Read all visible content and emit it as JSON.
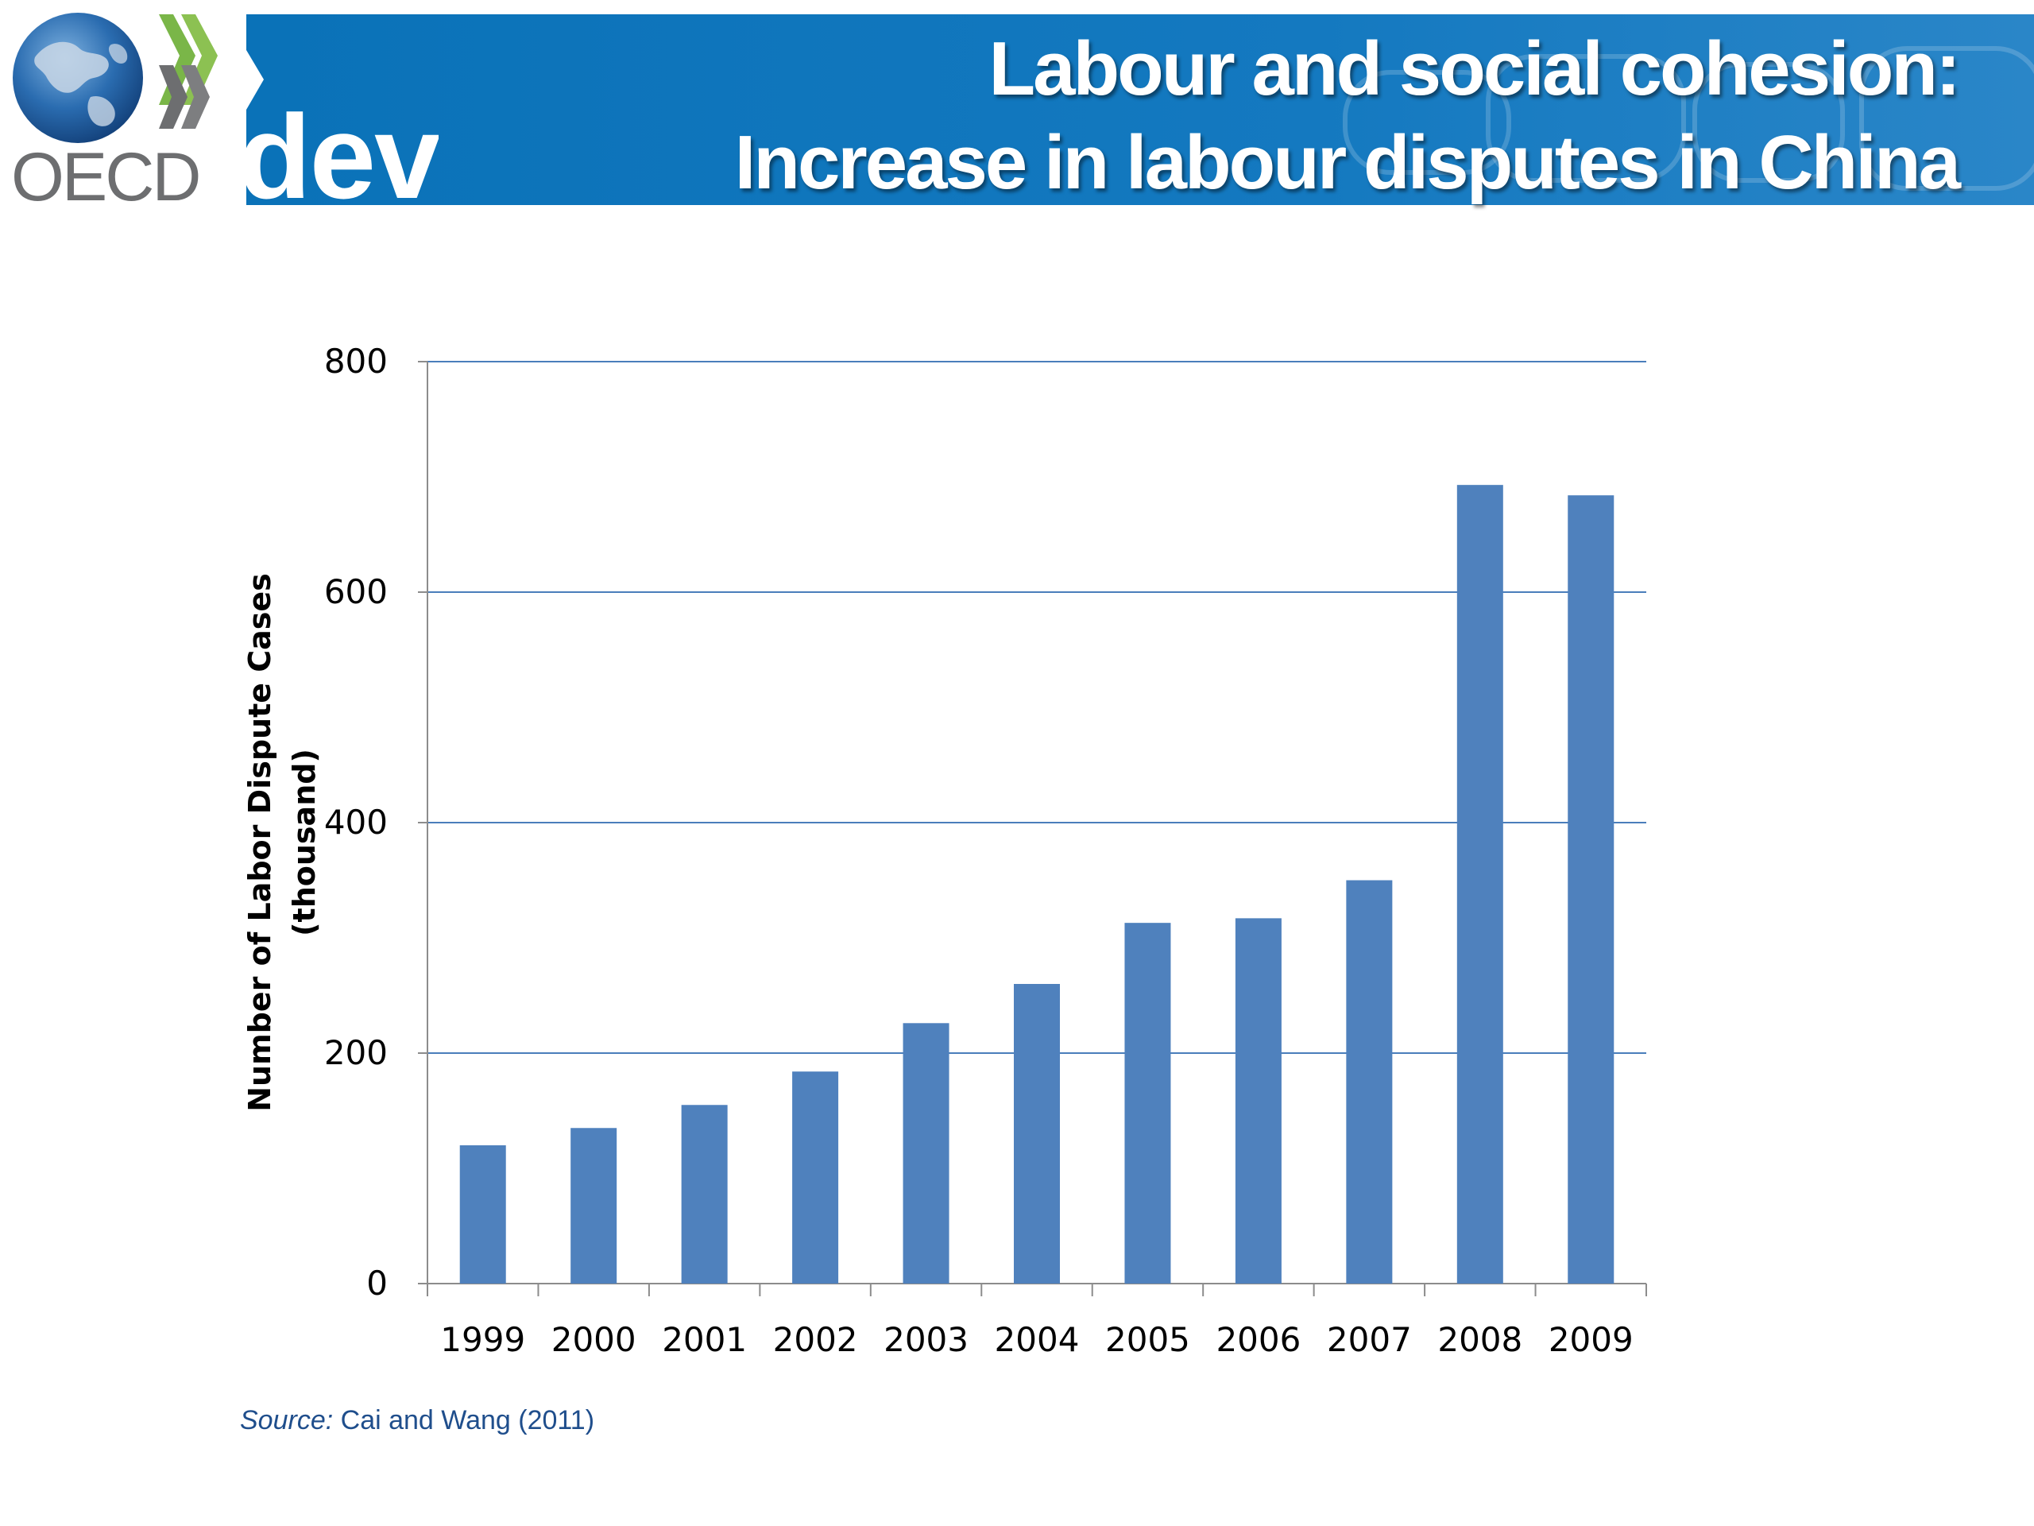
{
  "header": {
    "title_line1": "Labour and social cohesion:",
    "title_line2": "Increase in labour disputes in China",
    "dev_text": "dev",
    "logo_text": "OECD"
  },
  "colors": {
    "banner": "#0a72b8",
    "bar": "#4f81bd",
    "grid": "#4a7ebb",
    "logo_text": "#6d6e70",
    "source_text": "#1f4e8c"
  },
  "chart_data": {
    "type": "bar",
    "categories": [
      "1999",
      "2000",
      "2001",
      "2002",
      "2003",
      "2004",
      "2005",
      "2006",
      "2007",
      "2008",
      "2009"
    ],
    "values": [
      120,
      135,
      155,
      184,
      226,
      260,
      313,
      317,
      350,
      693,
      684
    ],
    "title": "",
    "xlabel": "",
    "ylabel_line1": "Number of Labor Dispute Cases",
    "ylabel_line2": "(thousand)",
    "ylim": [
      0,
      800
    ],
    "yticks": [
      0,
      200,
      400,
      600,
      800
    ],
    "grid": true,
    "legend": "none"
  },
  "source": {
    "label": "Source:",
    "text": " Cai and Wang (2011)"
  }
}
